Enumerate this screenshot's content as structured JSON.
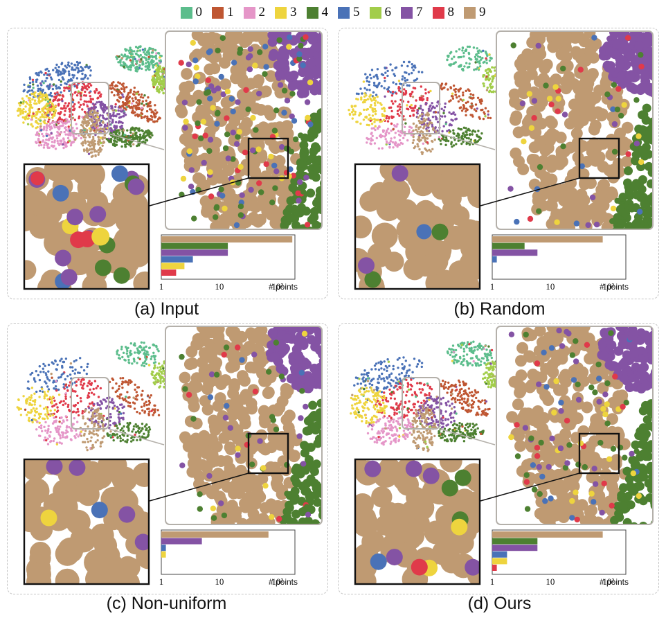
{
  "legend": {
    "classes": [
      {
        "label": "0",
        "color": "#5cbd8c"
      },
      {
        "label": "1",
        "color": "#bf5632"
      },
      {
        "label": "2",
        "color": "#e596c8"
      },
      {
        "label": "3",
        "color": "#eed43e"
      },
      {
        "label": "4",
        "color": "#4d8031"
      },
      {
        "label": "5",
        "color": "#4a72b7"
      },
      {
        "label": "6",
        "color": "#a2cd4a"
      },
      {
        "label": "7",
        "color": "#8453a4"
      },
      {
        "label": "8",
        "color": "#e03a4a"
      },
      {
        "label": "9",
        "color": "#bf9a72"
      }
    ]
  },
  "panels": [
    {
      "id": "a",
      "caption": "(a) Input",
      "density": 1.0,
      "zoom_dots": [
        {
          "c": "7",
          "r": 11
        },
        {
          "c": "3",
          "r": 12
        },
        {
          "c": "4",
          "r": 12
        },
        {
          "c": "7",
          "r": 12
        },
        {
          "c": "7",
          "r": 11
        },
        {
          "c": "4",
          "r": 12
        },
        {
          "c": "7",
          "r": 12
        },
        {
          "c": "4",
          "r": 12
        },
        {
          "c": "5",
          "r": 12
        },
        {
          "c": "8",
          "r": 12
        },
        {
          "c": "7",
          "r": 12
        },
        {
          "c": "5",
          "r": 12
        },
        {
          "c": "7",
          "r": 12
        },
        {
          "c": "8",
          "r": 12
        },
        {
          "c": "7",
          "r": 12
        },
        {
          "c": "3",
          "r": 13
        },
        {
          "c": "4",
          "r": 12
        },
        {
          "c": "5",
          "r": 12
        },
        {
          "c": "8",
          "r": 10
        },
        {
          "c": "7",
          "r": 12
        }
      ],
      "bar_chart": {
        "type": "bar",
        "orientation": "horizontal",
        "xscale": "log",
        "xlim": [
          1,
          200
        ],
        "xticks": [
          "1",
          "10",
          "10²"
        ],
        "xlabel": "# points",
        "bars": [
          {
            "class": "9",
            "value": 180
          },
          {
            "class": "4",
            "value": 14
          },
          {
            "class": "7",
            "value": 14
          },
          {
            "class": "5",
            "value": 3.5
          },
          {
            "class": "3",
            "value": 2.5
          },
          {
            "class": "8",
            "value": 1.8
          }
        ]
      }
    },
    {
      "id": "b",
      "caption": "(b) Random",
      "density": 0.35,
      "zoom_dots": [
        {
          "c": "7",
          "r": 12
        },
        {
          "c": "4",
          "r": 12
        },
        {
          "c": "7",
          "r": 12
        },
        {
          "c": "4",
          "r": 12
        },
        {
          "c": "5",
          "r": 11
        }
      ],
      "bar_chart": {
        "type": "bar",
        "orientation": "horizontal",
        "xscale": "log",
        "xlim": [
          1,
          200
        ],
        "xticks": [
          "1",
          "10",
          "10²"
        ],
        "xlabel": "# points",
        "bars": [
          {
            "class": "9",
            "value": 80
          },
          {
            "class": "4",
            "value": 3.6
          },
          {
            "class": "7",
            "value": 6
          },
          {
            "class": "5",
            "value": 1.2
          }
        ]
      }
    },
    {
      "id": "c",
      "caption": "(c) Non-uniform",
      "density": 0.35,
      "zoom_dots": [
        {
          "c": "3",
          "r": 12
        },
        {
          "c": "7",
          "r": 12
        },
        {
          "c": "7",
          "r": 12
        },
        {
          "c": "7",
          "r": 12
        },
        {
          "c": "7",
          "r": 12
        },
        {
          "c": "5",
          "r": 12
        }
      ],
      "bar_chart": {
        "type": "bar",
        "orientation": "horizontal",
        "xscale": "log",
        "xlim": [
          1,
          200
        ],
        "xticks": [
          "1",
          "10",
          "10²"
        ],
        "xlabel": "# points",
        "bars": [
          {
            "class": "9",
            "value": 70
          },
          {
            "class": "7",
            "value": 5
          },
          {
            "class": "5",
            "value": 1.2
          },
          {
            "class": "3",
            "value": 1.2
          }
        ]
      }
    },
    {
      "id": "d",
      "caption": "(d) Ours",
      "density": 0.6,
      "zoom_dots": [
        {
          "c": "7",
          "r": 12
        },
        {
          "c": "3",
          "r": 12
        },
        {
          "c": "4",
          "r": 12
        },
        {
          "c": "7",
          "r": 12
        },
        {
          "c": "4",
          "r": 12
        },
        {
          "c": "7",
          "r": 12
        },
        {
          "c": "8",
          "r": 12
        },
        {
          "c": "7",
          "r": 12
        },
        {
          "c": "5",
          "r": 12
        },
        {
          "c": "3",
          "r": 12
        },
        {
          "c": "4",
          "r": 12
        },
        {
          "c": "7",
          "r": 12
        }
      ],
      "bar_chart": {
        "type": "bar",
        "orientation": "horizontal",
        "xscale": "log",
        "xlim": [
          1,
          200
        ],
        "xticks": [
          "1",
          "10",
          "10²"
        ],
        "xlabel": "# points",
        "bars": [
          {
            "class": "9",
            "value": 80
          },
          {
            "class": "4",
            "value": 6
          },
          {
            "class": "7",
            "value": 6
          },
          {
            "class": "5",
            "value": 1.8
          },
          {
            "class": "3",
            "value": 1.8
          },
          {
            "class": "8",
            "value": 1.2
          }
        ]
      }
    }
  ]
}
